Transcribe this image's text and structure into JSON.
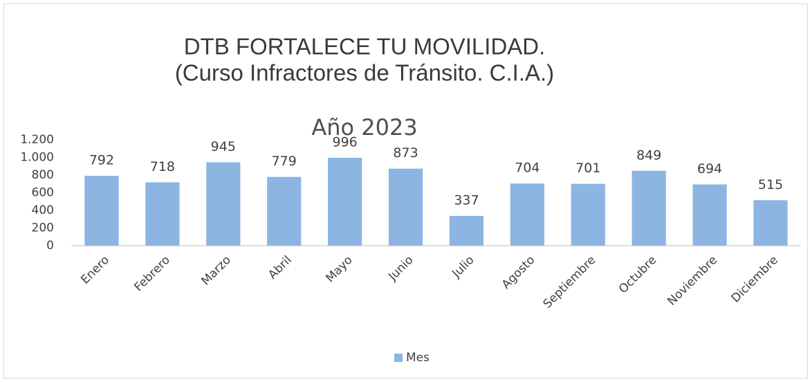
{
  "chart_data": {
    "type": "bar",
    "title": [
      "DTB FORTALECE TU MOVILIDAD.",
      "(Curso Infractores de Tránsito. C.I.A.)"
    ],
    "subtitle": "Año 2023",
    "categories": [
      "Enero",
      "Febrero",
      "Marzo",
      "Abril",
      "Mayo",
      "Junio",
      "Julio",
      "Agosto",
      "Septiembre",
      "Octubre",
      "Noviembre",
      "Diciembre"
    ],
    "series": [
      {
        "name": "Mes",
        "color": "#8cb5e1",
        "values": [
          792,
          718,
          945,
          779,
          996,
          873,
          337,
          704,
          701,
          849,
          694,
          515
        ]
      }
    ],
    "ylim": [
      0,
      1200
    ],
    "yticks": [
      0,
      200,
      400,
      600,
      800,
      {
        "value": 1000,
        "label": "1.000"
      },
      {
        "value": 1200,
        "label": "1.200"
      }
    ],
    "grid": false,
    "legend": "bottom"
  }
}
